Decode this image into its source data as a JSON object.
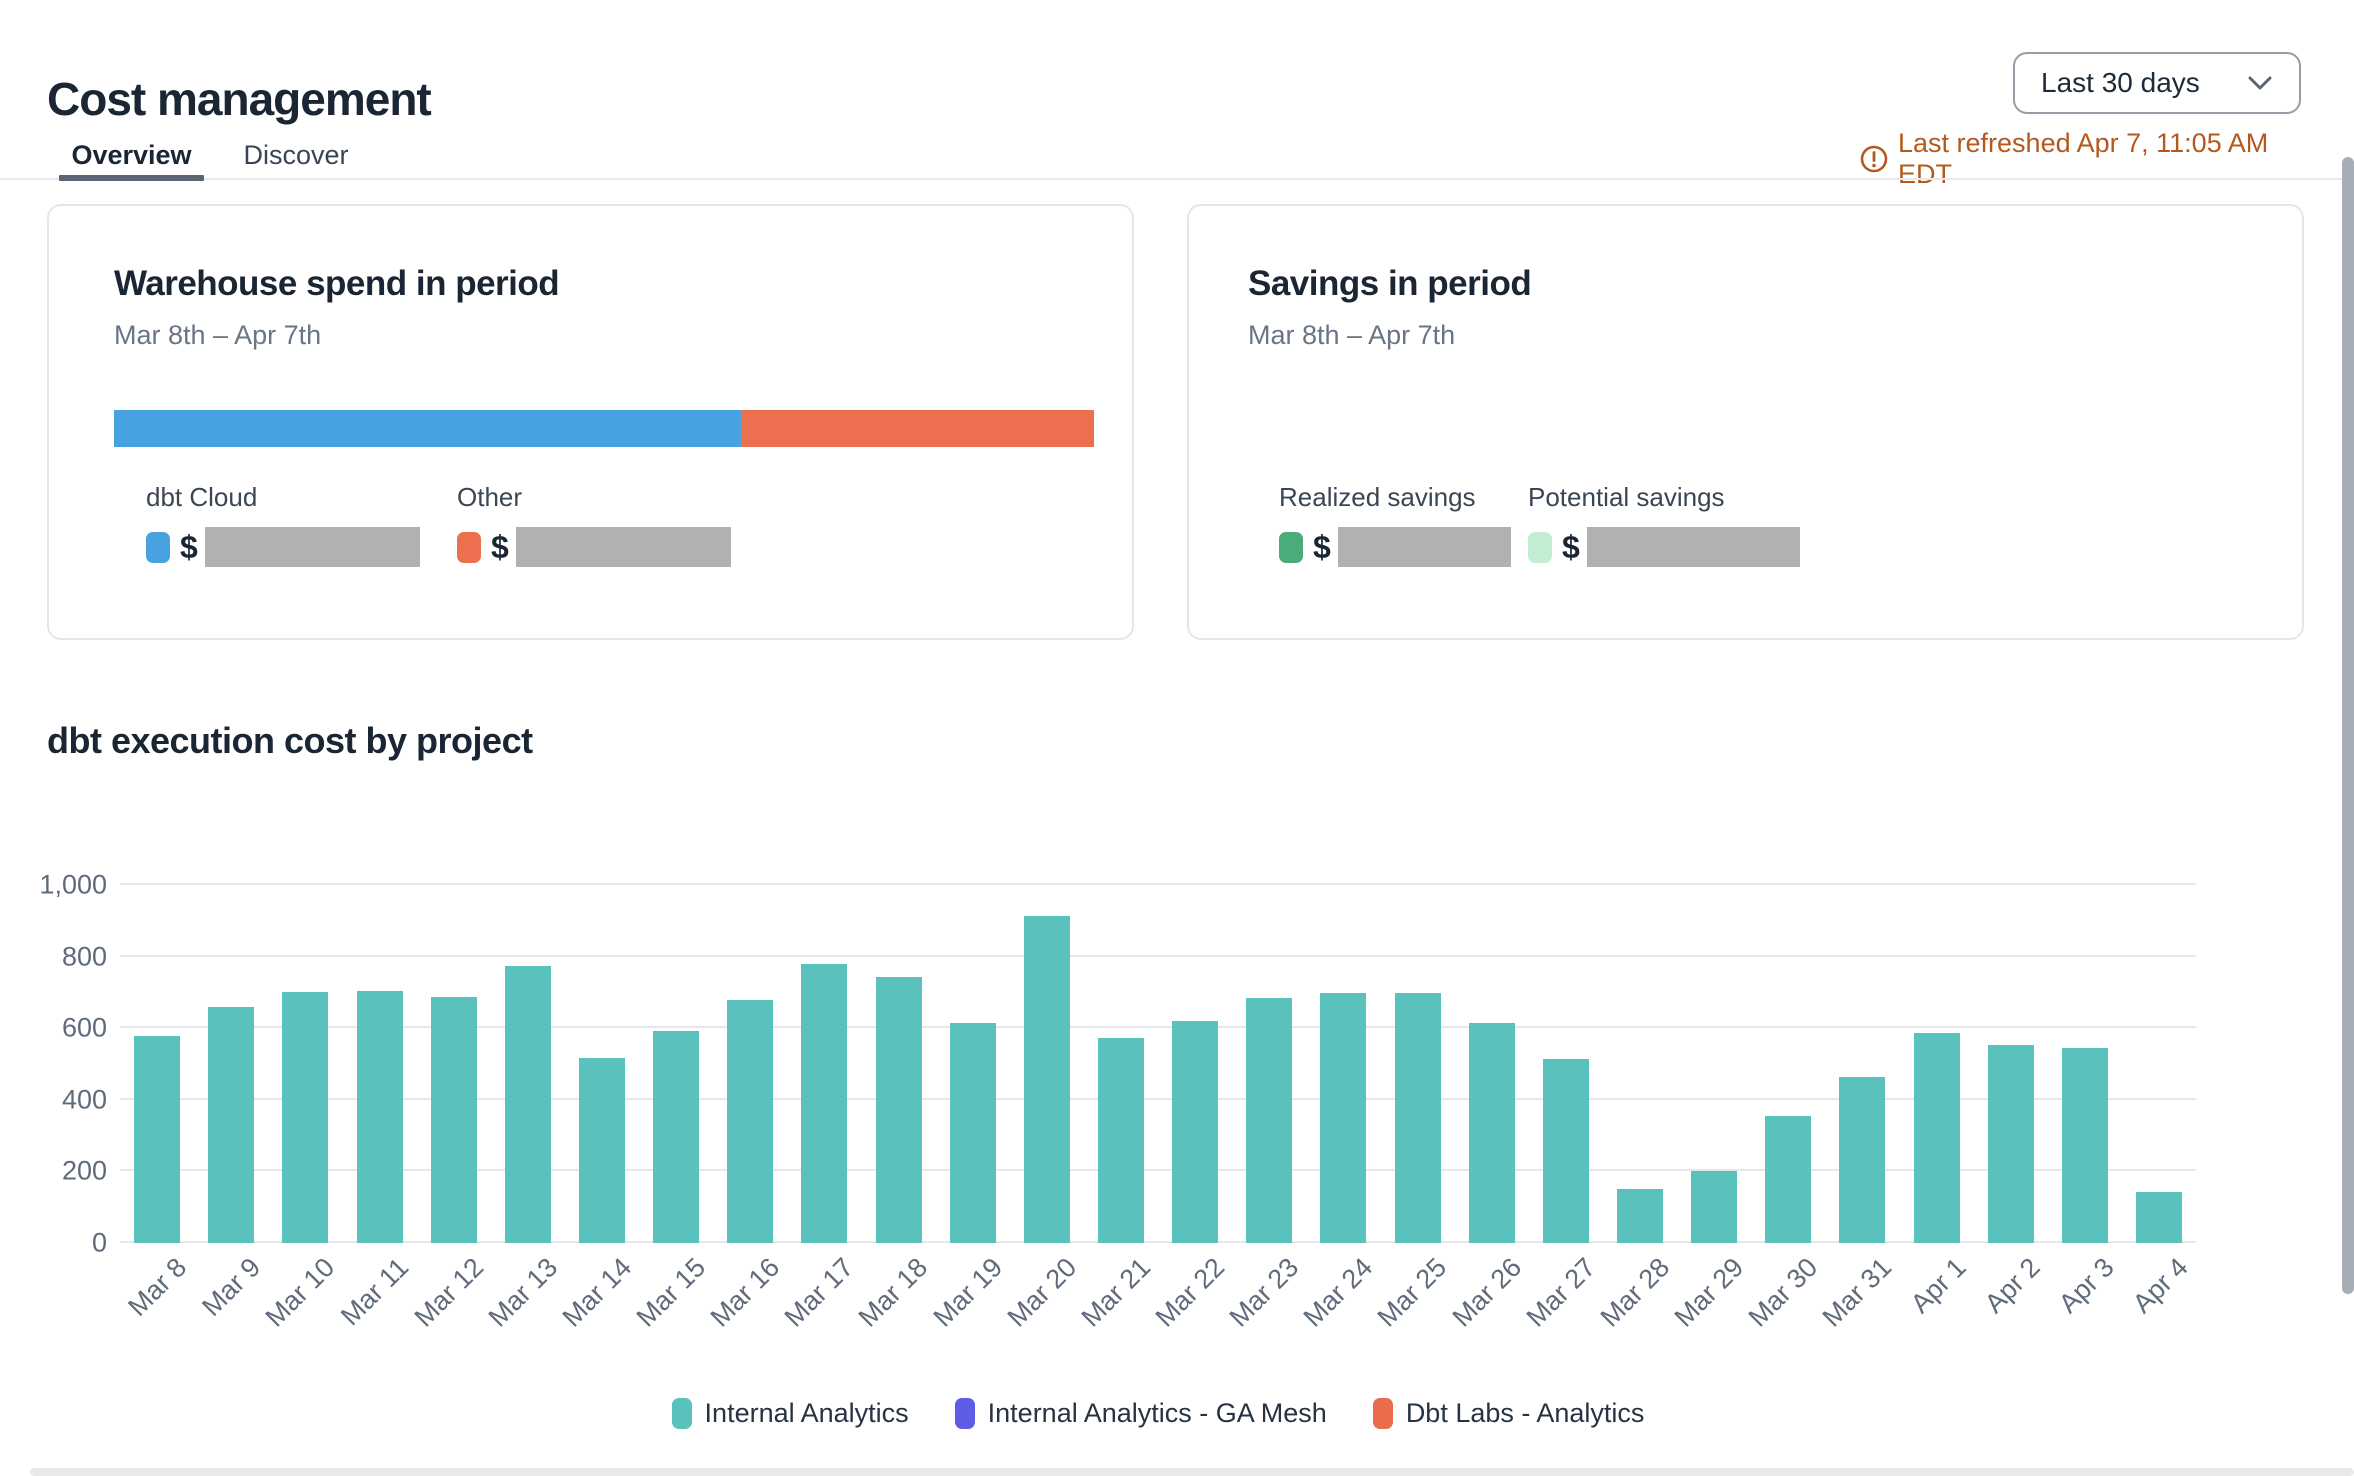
{
  "header": {
    "title": "Cost management",
    "period_selector": {
      "value": "Last 30 days"
    },
    "last_refreshed": "Last refreshed Apr 7, 11:05 AM EDT"
  },
  "tabs": [
    {
      "label": "Overview",
      "active": true
    },
    {
      "label": "Discover",
      "active": false
    }
  ],
  "cards": {
    "warehouse": {
      "title": "Warehouse spend in period",
      "date_range": "Mar 8th – Apr 7th",
      "stacked_bar": {
        "dbt_cloud_pct": 64,
        "other_pct": 36
      },
      "legend": [
        {
          "label": "dbt Cloud",
          "currency": "$",
          "color": "#49a2e0",
          "value_redacted": true
        },
        {
          "label": "Other",
          "currency": "$",
          "color": "#ec6f50",
          "value_redacted": true
        }
      ]
    },
    "savings": {
      "title": "Savings in period",
      "date_range": "Mar 8th – Apr 7th",
      "legend": [
        {
          "label": "Realized savings",
          "currency": "$",
          "color": "#4bab7b",
          "value_redacted": true
        },
        {
          "label": "Potential savings",
          "currency": "$",
          "color": "#c4eed4",
          "value_redacted": true
        }
      ]
    }
  },
  "chart_data": {
    "type": "bar",
    "title": "dbt execution cost by project",
    "categories": [
      "Mar 8",
      "Mar 9",
      "Mar 10",
      "Mar 11",
      "Mar 12",
      "Mar 13",
      "Mar 14",
      "Mar 15",
      "Mar 16",
      "Mar 17",
      "Mar 18",
      "Mar 19",
      "Mar 20",
      "Mar 21",
      "Mar 22",
      "Mar 23",
      "Mar 24",
      "Mar 25",
      "Mar 26",
      "Mar 27",
      "Mar 28",
      "Mar 29",
      "Mar 30",
      "Mar 31",
      "Apr 1",
      "Apr 2",
      "Apr 3",
      "Apr 4"
    ],
    "series": [
      {
        "name": "Internal Analytics",
        "color": "#5ac2bc",
        "values": [
          578,
          660,
          700,
          703,
          687,
          774,
          517,
          593,
          679,
          779,
          742,
          615,
          913,
          572,
          620,
          685,
          699,
          698,
          614,
          513,
          151,
          201,
          355,
          464,
          587,
          553,
          545,
          142
        ]
      }
    ],
    "legend": [
      {
        "label": "Internal Analytics",
        "color": "#5ac2bc"
      },
      {
        "label": "Internal Analytics - GA Mesh",
        "color": "#5f5ce6"
      },
      {
        "label": "Dbt Labs - Analytics",
        "color": "#e96c4b"
      }
    ],
    "xlabel": "",
    "ylabel": "",
    "ylim": [
      0,
      1000
    ],
    "yticks": [
      0,
      200,
      400,
      600,
      800,
      1000
    ],
    "ytick_labels": [
      "0",
      "200",
      "400",
      "600",
      "800",
      "1,000"
    ],
    "grid": true,
    "legend_position": "bottom"
  },
  "colors": {
    "accent_teal": "#5ac2bc",
    "accent_blue": "#49a2e0",
    "accent_orange": "#ec6f50",
    "accent_purple": "#5f5ce6",
    "accent_green": "#4bab7b",
    "accent_light_green": "#c4eed4",
    "warning_text": "#b4591e",
    "redacted_gray": "#b1b1b1"
  }
}
